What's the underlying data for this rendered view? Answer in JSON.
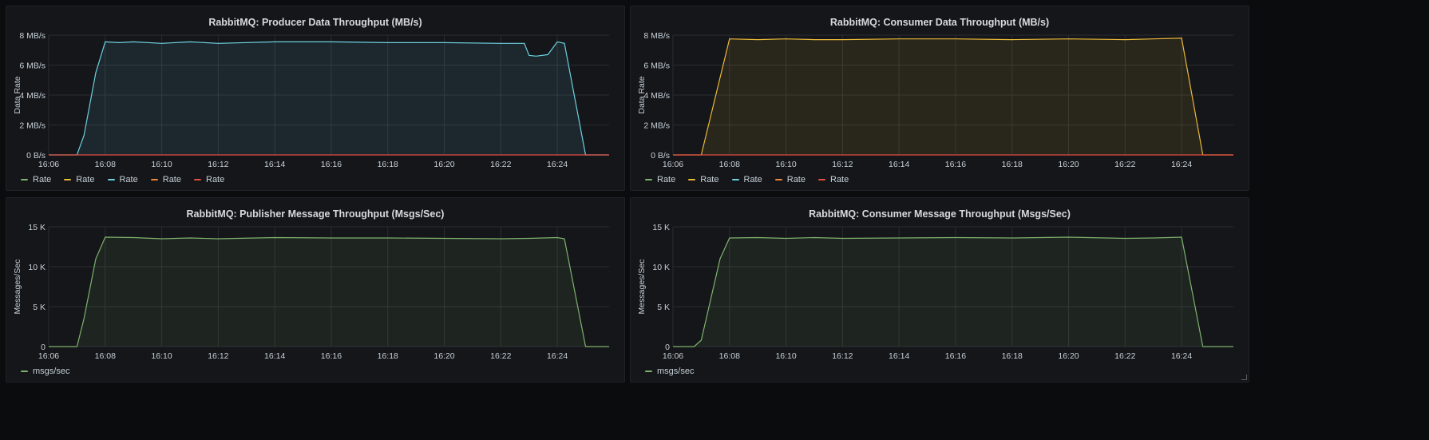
{
  "colors": {
    "green": "#7eb26d",
    "yellow": "#eab839",
    "teal": "#6ed0e0",
    "orange": "#ef843c",
    "red": "#e24d42"
  },
  "panels": [
    {
      "title": "RabbitMQ: Producer Data Throughput (MB/s)",
      "legend": [
        {
          "label": "Rate",
          "color": "#7eb26d"
        },
        {
          "label": "Rate",
          "color": "#eab839"
        },
        {
          "label": "Rate",
          "color": "#6ed0e0"
        },
        {
          "label": "Rate",
          "color": "#ef843c"
        },
        {
          "label": "Rate",
          "color": "#e24d42"
        }
      ]
    },
    {
      "title": "RabbitMQ: Consumer Data Throughput (MB/s)",
      "legend": [
        {
          "label": "Rate",
          "color": "#7eb26d"
        },
        {
          "label": "Rate",
          "color": "#eab839"
        },
        {
          "label": "Rate",
          "color": "#6ed0e0"
        },
        {
          "label": "Rate",
          "color": "#ef843c"
        },
        {
          "label": "Rate",
          "color": "#e24d42"
        }
      ]
    },
    {
      "title": "RabbitMQ: Publisher Message Throughput (Msgs/Sec)",
      "legend": [
        {
          "label": "msgs/sec",
          "color": "#7eb26d"
        }
      ]
    },
    {
      "title": "RabbitMQ: Consumer Message Throughput (Msgs/Sec)",
      "legend": [
        {
          "label": "msgs/sec",
          "color": "#7eb26d"
        }
      ]
    }
  ],
  "chart_data": [
    {
      "type": "area",
      "title": "RabbitMQ: Producer Data Throughput (MB/s)",
      "ylabel": "Data Rate",
      "ylim": [
        0,
        8
      ],
      "xlim": [
        "16:06",
        "16:25:50"
      ],
      "yticks": [
        {
          "v": 0,
          "label": "0 B/s"
        },
        {
          "v": 2,
          "label": "2 MB/s"
        },
        {
          "v": 4,
          "label": "4 MB/s"
        },
        {
          "v": 6,
          "label": "6 MB/s"
        },
        {
          "v": 8,
          "label": "8 MB/s"
        }
      ],
      "xticks": [
        "16:06",
        "16:08",
        "16:10",
        "16:12",
        "16:14",
        "16:16",
        "16:18",
        "16:20",
        "16:22",
        "16:24"
      ],
      "grid": true,
      "legend_position": "bottom",
      "series": [
        {
          "name": "Rate",
          "color": "#6ed0e0",
          "filled": true,
          "x": [
            "16:06",
            "16:07",
            "16:07:15",
            "16:07:40",
            "16:08",
            "16:08:30",
            "16:09",
            "16:10",
            "16:11",
            "16:12",
            "16:14",
            "16:16",
            "16:18",
            "16:20",
            "16:22",
            "16:22:50",
            "16:23",
            "16:23:15",
            "16:23:40",
            "16:24",
            "16:24:15",
            "16:25",
            "16:25:50"
          ],
          "y": [
            0,
            0,
            1.3,
            5.5,
            7.55,
            7.5,
            7.55,
            7.45,
            7.55,
            7.45,
            7.55,
            7.55,
            7.5,
            7.5,
            7.45,
            7.45,
            6.65,
            6.6,
            6.7,
            7.55,
            7.45,
            0,
            0
          ]
        },
        {
          "name": "Rate",
          "color": "#e24d42",
          "filled": false,
          "x": [
            "16:06",
            "16:25:50"
          ],
          "y": [
            0,
            0
          ]
        }
      ]
    },
    {
      "type": "area",
      "title": "RabbitMQ: Consumer Data Throughput (MB/s)",
      "ylabel": "Data Rate",
      "ylim": [
        0,
        8
      ],
      "xlim": [
        "16:06",
        "16:25:50"
      ],
      "yticks": [
        {
          "v": 0,
          "label": "0 B/s"
        },
        {
          "v": 2,
          "label": "2 MB/s"
        },
        {
          "v": 4,
          "label": "4 MB/s"
        },
        {
          "v": 6,
          "label": "6 MB/s"
        },
        {
          "v": 8,
          "label": "8 MB/s"
        }
      ],
      "xticks": [
        "16:06",
        "16:08",
        "16:10",
        "16:12",
        "16:14",
        "16:16",
        "16:18",
        "16:20",
        "16:22",
        "16:24"
      ],
      "grid": true,
      "legend_position": "bottom",
      "series": [
        {
          "name": "Rate",
          "color": "#eab839",
          "filled": true,
          "x": [
            "16:06",
            "16:07",
            "16:08",
            "16:09",
            "16:10",
            "16:11",
            "16:12",
            "16:14",
            "16:16",
            "16:18",
            "16:20",
            "16:22",
            "16:23",
            "16:24",
            "16:24:45",
            "16:25:50"
          ],
          "y": [
            0,
            0,
            7.75,
            7.7,
            7.75,
            7.7,
            7.7,
            7.75,
            7.75,
            7.7,
            7.75,
            7.7,
            7.75,
            7.8,
            0,
            0
          ]
        },
        {
          "name": "Rate",
          "color": "#e24d42",
          "filled": false,
          "x": [
            "16:06",
            "16:25:50"
          ],
          "y": [
            0,
            0
          ]
        }
      ]
    },
    {
      "type": "area",
      "title": "RabbitMQ: Publisher Message Throughput (Msgs/Sec)",
      "ylabel": "Messages/Sec",
      "ylim": [
        0,
        15000
      ],
      "xlim": [
        "16:06",
        "16:25:50"
      ],
      "yticks": [
        {
          "v": 0,
          "label": "0"
        },
        {
          "v": 5000,
          "label": "5 K"
        },
        {
          "v": 10000,
          "label": "10 K"
        },
        {
          "v": 15000,
          "label": "15 K"
        }
      ],
      "xticks": [
        "16:06",
        "16:08",
        "16:10",
        "16:12",
        "16:14",
        "16:16",
        "16:18",
        "16:20",
        "16:22",
        "16:24"
      ],
      "grid": true,
      "legend_position": "bottom",
      "series": [
        {
          "name": "msgs/sec",
          "color": "#7eb26d",
          "filled": true,
          "x": [
            "16:06",
            "16:07",
            "16:07:15",
            "16:07:40",
            "16:08",
            "16:09",
            "16:10",
            "16:11",
            "16:12",
            "16:14",
            "16:16",
            "16:18",
            "16:20",
            "16:22",
            "16:23",
            "16:24",
            "16:24:15",
            "16:25",
            "16:25:50"
          ],
          "y": [
            0,
            0,
            3500,
            11000,
            13700,
            13650,
            13500,
            13600,
            13500,
            13650,
            13600,
            13600,
            13550,
            13500,
            13550,
            13650,
            13500,
            0,
            0
          ]
        }
      ]
    },
    {
      "type": "area",
      "title": "RabbitMQ: Consumer Message Throughput (Msgs/Sec)",
      "ylabel": "Messages/Sec",
      "ylim": [
        0,
        15000
      ],
      "xlim": [
        "16:06",
        "16:25:50"
      ],
      "yticks": [
        {
          "v": 0,
          "label": "0"
        },
        {
          "v": 5000,
          "label": "5 K"
        },
        {
          "v": 10000,
          "label": "10 K"
        },
        {
          "v": 15000,
          "label": "15 K"
        }
      ],
      "xticks": [
        "16:06",
        "16:08",
        "16:10",
        "16:12",
        "16:14",
        "16:16",
        "16:18",
        "16:20",
        "16:22",
        "16:24"
      ],
      "grid": true,
      "legend_position": "bottom",
      "series": [
        {
          "name": "msgs/sec",
          "color": "#7eb26d",
          "filled": true,
          "x": [
            "16:06",
            "16:06:45",
            "16:07",
            "16:07:40",
            "16:08",
            "16:09",
            "16:10",
            "16:11",
            "16:12",
            "16:14",
            "16:16",
            "16:18",
            "16:20",
            "16:22",
            "16:23",
            "16:24",
            "16:24:45",
            "16:25:50"
          ],
          "y": [
            0,
            0,
            800,
            11000,
            13600,
            13650,
            13550,
            13650,
            13550,
            13600,
            13650,
            13600,
            13700,
            13550,
            13600,
            13700,
            0,
            0
          ]
        }
      ]
    }
  ]
}
